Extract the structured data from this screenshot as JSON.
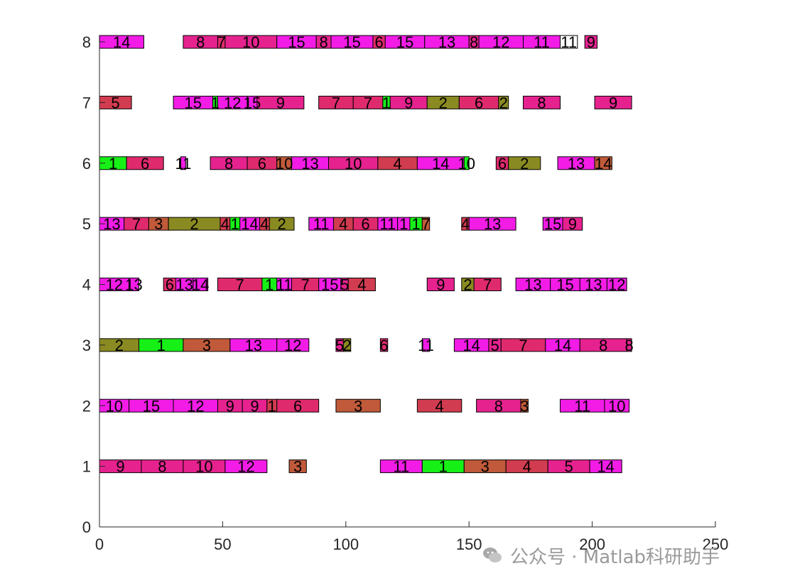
{
  "watermark": {
    "text": "公众号 · Matlab科研助手",
    "icon": "wechat-icon"
  },
  "colors": {
    "axis": "#262626",
    "bar_stroke": "#000000"
  },
  "chart_data": {
    "type": "gantt",
    "title": "",
    "xlabel": "",
    "ylabel": "",
    "xlim": [
      0,
      250
    ],
    "ylim": [
      0,
      8
    ],
    "xticks": [
      0,
      50,
      100,
      150,
      200,
      250
    ],
    "yticks": [
      0,
      1,
      2,
      3,
      4,
      5,
      6,
      7,
      8
    ],
    "grid": false,
    "bars": [
      {
        "row": 1,
        "start": 0,
        "end": 17,
        "label": "9",
        "color": "#e6228f"
      },
      {
        "row": 1,
        "start": 17,
        "end": 34,
        "label": "8",
        "color": "#e6228f"
      },
      {
        "row": 1,
        "start": 34,
        "end": 51,
        "label": "10",
        "color": "#e6228f"
      },
      {
        "row": 1,
        "start": 51,
        "end": 68,
        "label": "12",
        "color": "#f21ce6"
      },
      {
        "row": 1,
        "start": 77,
        "end": 84,
        "label": "3",
        "color": "#c05a3a"
      },
      {
        "row": 1,
        "start": 114,
        "end": 131,
        "label": "11",
        "color": "#f21ce6"
      },
      {
        "row": 1,
        "start": 131,
        "end": 148,
        "label": "1",
        "color": "#17f017"
      },
      {
        "row": 1,
        "start": 148,
        "end": 165,
        "label": "3",
        "color": "#c05a3a"
      },
      {
        "row": 1,
        "start": 165,
        "end": 182,
        "label": "4",
        "color": "#d23c50"
      },
      {
        "row": 1,
        "start": 182,
        "end": 199,
        "label": "5",
        "color": "#e6228f"
      },
      {
        "row": 1,
        "start": 199,
        "end": 212,
        "label": "14",
        "color": "#f21ce6"
      },
      {
        "row": 2,
        "start": 0,
        "end": 12,
        "label": "10",
        "color": "#f21ce6"
      },
      {
        "row": 2,
        "start": 12,
        "end": 30,
        "label": "15",
        "color": "#f21ce6"
      },
      {
        "row": 2,
        "start": 30,
        "end": 48,
        "label": "12",
        "color": "#f21ce6"
      },
      {
        "row": 2,
        "start": 48,
        "end": 58,
        "label": "9",
        "color": "#e6228f"
      },
      {
        "row": 2,
        "start": 58,
        "end": 68,
        "label": "9",
        "color": "#e6228f"
      },
      {
        "row": 2,
        "start": 68,
        "end": 72,
        "label": "1",
        "color": "#d23c50"
      },
      {
        "row": 2,
        "start": 72,
        "end": 89,
        "label": "6",
        "color": "#e02a6e"
      },
      {
        "row": 2,
        "start": 96,
        "end": 114,
        "label": "3",
        "color": "#c05a3a"
      },
      {
        "row": 2,
        "start": 129,
        "end": 147,
        "label": "4",
        "color": "#d23c50"
      },
      {
        "row": 2,
        "start": 153,
        "end": 171,
        "label": "8",
        "color": "#e6228f"
      },
      {
        "row": 2,
        "start": 171,
        "end": 174,
        "label": "3",
        "color": "#c05a3a"
      },
      {
        "row": 2,
        "start": 187,
        "end": 205,
        "label": "11",
        "color": "#f21ce6"
      },
      {
        "row": 2,
        "start": 205,
        "end": 215,
        "label": "10",
        "color": "#f21ce6"
      },
      {
        "row": 3,
        "start": 0,
        "end": 16,
        "label": "2",
        "color": "#8a8a22"
      },
      {
        "row": 3,
        "start": 16,
        "end": 34,
        "label": "1",
        "color": "#17f017"
      },
      {
        "row": 3,
        "start": 34,
        "end": 53,
        "label": "3",
        "color": "#c05a3a"
      },
      {
        "row": 3,
        "start": 53,
        "end": 72,
        "label": "13",
        "color": "#f21ce6"
      },
      {
        "row": 3,
        "start": 72,
        "end": 85,
        "label": "12",
        "color": "#f21ce6"
      },
      {
        "row": 3,
        "start": 96,
        "end": 99,
        "label": "5",
        "color": "#e6228f"
      },
      {
        "row": 3,
        "start": 99,
        "end": 102,
        "label": "2",
        "color": "#8a8a22"
      },
      {
        "row": 3,
        "start": 114,
        "end": 117,
        "label": "6",
        "color": "#e02a6e"
      },
      {
        "row": 3,
        "start": 131,
        "end": 134,
        "label": "11",
        "color": "#f21ce6"
      },
      {
        "row": 3,
        "start": 144,
        "end": 158,
        "label": "14",
        "color": "#f21ce6"
      },
      {
        "row": 3,
        "start": 158,
        "end": 163,
        "label": "5",
        "color": "#e6228f"
      },
      {
        "row": 3,
        "start": 163,
        "end": 181,
        "label": "7",
        "color": "#e02a6e"
      },
      {
        "row": 3,
        "start": 181,
        "end": 195,
        "label": "14",
        "color": "#f21ce6"
      },
      {
        "row": 3,
        "start": 195,
        "end": 214,
        "label": "8",
        "color": "#e6228f"
      },
      {
        "row": 3,
        "start": 214,
        "end": 216,
        "label": "8",
        "color": "#e6228f"
      },
      {
        "row": 4,
        "start": 0,
        "end": 12,
        "label": "12",
        "color": "#f21ce6"
      },
      {
        "row": 4,
        "start": 12,
        "end": 16,
        "label": "13",
        "color": "#f21ce6"
      },
      {
        "row": 4,
        "start": 26,
        "end": 31,
        "label": "6",
        "color": "#e02a6e"
      },
      {
        "row": 4,
        "start": 31,
        "end": 38,
        "label": "13",
        "color": "#f21ce6"
      },
      {
        "row": 4,
        "start": 38,
        "end": 44,
        "label": "14",
        "color": "#f21ce6"
      },
      {
        "row": 4,
        "start": 48,
        "end": 66,
        "label": "7",
        "color": "#e02a6e"
      },
      {
        "row": 4,
        "start": 66,
        "end": 72,
        "label": "1",
        "color": "#17f017"
      },
      {
        "row": 4,
        "start": 72,
        "end": 78,
        "label": "11",
        "color": "#f21ce6"
      },
      {
        "row": 4,
        "start": 78,
        "end": 89,
        "label": "7",
        "color": "#e02a6e"
      },
      {
        "row": 4,
        "start": 89,
        "end": 98,
        "label": "15",
        "color": "#f21ce6"
      },
      {
        "row": 4,
        "start": 98,
        "end": 101,
        "label": "5",
        "color": "#e6228f"
      },
      {
        "row": 4,
        "start": 101,
        "end": 112,
        "label": "4",
        "color": "#d23c50"
      },
      {
        "row": 4,
        "start": 133,
        "end": 144,
        "label": "9",
        "color": "#e6228f"
      },
      {
        "row": 4,
        "start": 147,
        "end": 152,
        "label": "2",
        "color": "#8a8a22"
      },
      {
        "row": 4,
        "start": 152,
        "end": 163,
        "label": "7",
        "color": "#e02a6e"
      },
      {
        "row": 4,
        "start": 169,
        "end": 183,
        "label": "13",
        "color": "#f21ce6"
      },
      {
        "row": 4,
        "start": 183,
        "end": 195,
        "label": "15",
        "color": "#f21ce6"
      },
      {
        "row": 4,
        "start": 195,
        "end": 206,
        "label": "13",
        "color": "#f21ce6"
      },
      {
        "row": 4,
        "start": 206,
        "end": 214,
        "label": "12",
        "color": "#f21ce6"
      },
      {
        "row": 5,
        "start": 0,
        "end": 10,
        "label": "13",
        "color": "#f21ce6"
      },
      {
        "row": 5,
        "start": 10,
        "end": 20,
        "label": "7",
        "color": "#e02a6e"
      },
      {
        "row": 5,
        "start": 20,
        "end": 28,
        "label": "3",
        "color": "#c05a3a"
      },
      {
        "row": 5,
        "start": 28,
        "end": 49,
        "label": "2",
        "color": "#8a8a22"
      },
      {
        "row": 5,
        "start": 49,
        "end": 53,
        "label": "4",
        "color": "#d23c50"
      },
      {
        "row": 5,
        "start": 53,
        "end": 57,
        "label": "1",
        "color": "#17f017"
      },
      {
        "row": 5,
        "start": 57,
        "end": 65,
        "label": "14",
        "color": "#f21ce6"
      },
      {
        "row": 5,
        "start": 65,
        "end": 69,
        "label": "4",
        "color": "#d23c50"
      },
      {
        "row": 5,
        "start": 69,
        "end": 79,
        "label": "2",
        "color": "#8a8a22"
      },
      {
        "row": 5,
        "start": 85,
        "end": 95,
        "label": "11",
        "color": "#f21ce6"
      },
      {
        "row": 5,
        "start": 95,
        "end": 103,
        "label": "4",
        "color": "#d23c50"
      },
      {
        "row": 5,
        "start": 103,
        "end": 113,
        "label": "6",
        "color": "#e02a6e"
      },
      {
        "row": 5,
        "start": 113,
        "end": 121,
        "label": "11",
        "color": "#f21ce6"
      },
      {
        "row": 5,
        "start": 121,
        "end": 126,
        "label": "1",
        "color": "#f21ce6"
      },
      {
        "row": 5,
        "start": 126,
        "end": 131,
        "label": "1",
        "color": "#17f017"
      },
      {
        "row": 5,
        "start": 131,
        "end": 134,
        "label": "7",
        "color": "#c05a3a"
      },
      {
        "row": 5,
        "start": 147,
        "end": 150,
        "label": "4",
        "color": "#d23c50"
      },
      {
        "row": 5,
        "start": 150,
        "end": 169,
        "label": "13",
        "color": "#f21ce6"
      },
      {
        "row": 5,
        "start": 180,
        "end": 188,
        "label": "15",
        "color": "#f21ce6"
      },
      {
        "row": 5,
        "start": 188,
        "end": 196,
        "label": "9",
        "color": "#e6228f"
      },
      {
        "row": 6,
        "start": 0,
        "end": 11,
        "label": "1",
        "color": "#17f017"
      },
      {
        "row": 6,
        "start": 11,
        "end": 26,
        "label": "6",
        "color": "#e02a6e"
      },
      {
        "row": 6,
        "start": 33,
        "end": 35,
        "label": "11",
        "color": "#f21ce6"
      },
      {
        "row": 6,
        "start": 45,
        "end": 60,
        "label": "8",
        "color": "#e6228f"
      },
      {
        "row": 6,
        "start": 60,
        "end": 72,
        "label": "6",
        "color": "#e02a6e"
      },
      {
        "row": 6,
        "start": 72,
        "end": 78,
        "label": "10",
        "color": "#c05a3a"
      },
      {
        "row": 6,
        "start": 78,
        "end": 93,
        "label": "13",
        "color": "#f21ce6"
      },
      {
        "row": 6,
        "start": 93,
        "end": 113,
        "label": "10",
        "color": "#e6228f"
      },
      {
        "row": 6,
        "start": 113,
        "end": 129,
        "label": "4",
        "color": "#d23c50"
      },
      {
        "row": 6,
        "start": 129,
        "end": 148,
        "label": "14",
        "color": "#f21ce6"
      },
      {
        "row": 6,
        "start": 148,
        "end": 150,
        "label": "10",
        "color": "#17f017"
      },
      {
        "row": 6,
        "start": 161,
        "end": 166,
        "label": "6",
        "color": "#e02a6e"
      },
      {
        "row": 6,
        "start": 166,
        "end": 179,
        "label": "2",
        "color": "#8a8a22"
      },
      {
        "row": 6,
        "start": 186,
        "end": 201,
        "label": "13",
        "color": "#f21ce6"
      },
      {
        "row": 6,
        "start": 201,
        "end": 208,
        "label": "14",
        "color": "#c05a3a"
      },
      {
        "row": 7,
        "start": 0,
        "end": 13,
        "label": "5",
        "color": "#d23c50"
      },
      {
        "row": 7,
        "start": 30,
        "end": 46,
        "label": "15",
        "color": "#f21ce6"
      },
      {
        "row": 7,
        "start": 46,
        "end": 48,
        "label": "1",
        "color": "#17f017"
      },
      {
        "row": 7,
        "start": 48,
        "end": 60,
        "label": "12",
        "color": "#f21ce6"
      },
      {
        "row": 7,
        "start": 60,
        "end": 64,
        "label": "15",
        "color": "#f21ce6"
      },
      {
        "row": 7,
        "start": 64,
        "end": 83,
        "label": "9",
        "color": "#e6228f"
      },
      {
        "row": 7,
        "start": 89,
        "end": 103,
        "label": "7",
        "color": "#e02a6e"
      },
      {
        "row": 7,
        "start": 103,
        "end": 115,
        "label": "7",
        "color": "#e02a6e"
      },
      {
        "row": 7,
        "start": 115,
        "end": 118,
        "label": "1",
        "color": "#17f017"
      },
      {
        "row": 7,
        "start": 118,
        "end": 133,
        "label": "9",
        "color": "#e6228f"
      },
      {
        "row": 7,
        "start": 133,
        "end": 146,
        "label": "2",
        "color": "#8a8a22"
      },
      {
        "row": 7,
        "start": 146,
        "end": 162,
        "label": "6",
        "color": "#e02a6e"
      },
      {
        "row": 7,
        "start": 162,
        "end": 166,
        "label": "2",
        "color": "#8a8a22"
      },
      {
        "row": 7,
        "start": 172,
        "end": 187,
        "label": "8",
        "color": "#e6228f"
      },
      {
        "row": 7,
        "start": 201,
        "end": 216,
        "label": "9",
        "color": "#e6228f"
      },
      {
        "row": 8,
        "start": 0,
        "end": 18,
        "label": "14",
        "color": "#f21ce6"
      },
      {
        "row": 8,
        "start": 34,
        "end": 48,
        "label": "8",
        "color": "#e6228f"
      },
      {
        "row": 8,
        "start": 48,
        "end": 51,
        "label": "7",
        "color": "#e02a6e"
      },
      {
        "row": 8,
        "start": 51,
        "end": 72,
        "label": "10",
        "color": "#e6228f"
      },
      {
        "row": 8,
        "start": 72,
        "end": 88,
        "label": "15",
        "color": "#f21ce6"
      },
      {
        "row": 8,
        "start": 88,
        "end": 94,
        "label": "8",
        "color": "#e6228f"
      },
      {
        "row": 8,
        "start": 94,
        "end": 111,
        "label": "15",
        "color": "#f21ce6"
      },
      {
        "row": 8,
        "start": 111,
        "end": 116,
        "label": "6",
        "color": "#e02a6e"
      },
      {
        "row": 8,
        "start": 116,
        "end": 132,
        "label": "15",
        "color": "#f21ce6"
      },
      {
        "row": 8,
        "start": 132,
        "end": 150,
        "label": "13",
        "color": "#f21ce6"
      },
      {
        "row": 8,
        "start": 150,
        "end": 154,
        "label": "8",
        "color": "#e6228f"
      },
      {
        "row": 8,
        "start": 154,
        "end": 172,
        "label": "12",
        "color": "#f21ce6"
      },
      {
        "row": 8,
        "start": 172,
        "end": 187,
        "label": "11",
        "color": "#f21ce6"
      },
      {
        "row": 8,
        "start": 187,
        "end": 194,
        "label": "11",
        "color": "#ffffff"
      },
      {
        "row": 8,
        "start": 197,
        "end": 202,
        "label": "9",
        "color": "#e6228f"
      }
    ]
  }
}
